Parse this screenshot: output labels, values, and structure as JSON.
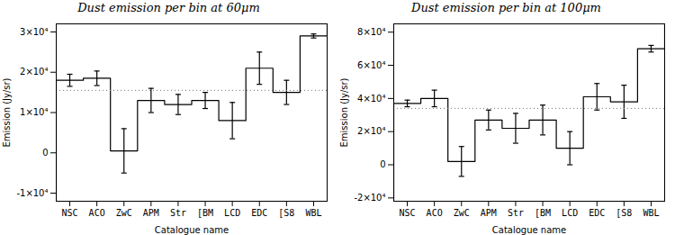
{
  "chart_data": [
    {
      "type": "step",
      "title": "Dust emission per bin at 60μm",
      "xlabel": "Catalogue name",
      "ylabel": "Emission (Jy/sr)",
      "categories": [
        "NSC",
        "ACO",
        "ZwC",
        "APM",
        "Str",
        "[BM",
        "LCD",
        "EDC",
        "[S8",
        "WBL"
      ],
      "values": [
        18000,
        18500,
        500,
        13000,
        12000,
        13000,
        8000,
        21000,
        15000,
        29000
      ],
      "errors": [
        1500,
        1800,
        5500,
        3000,
        2500,
        2000,
        4500,
        4000,
        3000,
        500
      ],
      "hline": {
        "value": 15500,
        "color": "#777777",
        "line_style": "dotted"
      },
      "color": "#000000",
      "ylim": [
        -12000,
        32000
      ],
      "yticks": [
        {
          "value": -10000,
          "label": "-1×10⁴"
        },
        0,
        {
          "value": 10000,
          "label": "1×10⁴"
        },
        {
          "value": 20000,
          "label": "2×10⁴"
        },
        {
          "value": 30000,
          "label": "3×10⁴"
        }
      ]
    },
    {
      "type": "step",
      "title": "Dust emission per bin at 100μm",
      "xlabel": "Catalogue name",
      "ylabel": "Emission (Jy/sr)",
      "categories": [
        "NSC",
        "ACO",
        "ZwC",
        "APM",
        "Str",
        "[BM",
        "LCD",
        "EDC",
        "[S8",
        "WBL"
      ],
      "values": [
        37000,
        40000,
        2000,
        27000,
        22000,
        27000,
        10000,
        41000,
        38000,
        70000
      ],
      "errors": [
        2000,
        5000,
        9000,
        6000,
        9000,
        9000,
        10000,
        8000,
        10000,
        2000
      ],
      "hline": {
        "value": 34000,
        "color": "#777777",
        "line_style": "dotted"
      },
      "color": "#000000",
      "ylim": [
        -22000,
        85000
      ],
      "yticks": [
        {
          "value": -20000,
          "label": "-2×10⁴"
        },
        0,
        {
          "value": 20000,
          "label": "2×10⁴"
        },
        {
          "value": 40000,
          "label": "4×10⁴"
        },
        {
          "value": 60000,
          "label": "6×10⁴"
        },
        {
          "value": 80000,
          "label": "8×10⁴"
        }
      ]
    }
  ]
}
